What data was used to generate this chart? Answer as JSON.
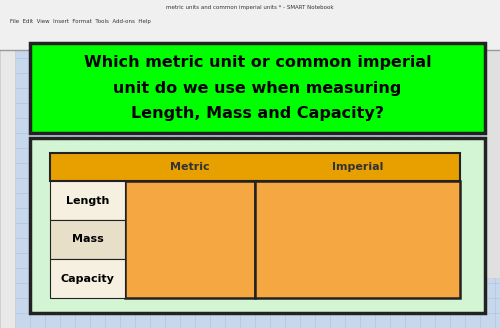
{
  "title_line1": "Which metric unit or common imperial",
  "title_line2": "unit do we use when measuring",
  "title_line3": "Length, Mass and Capacity?",
  "title_bg": "#00FF00",
  "title_text_color": "#000000",
  "outer_bg": "#d4f5d4",
  "outer_border": "#222222",
  "header_bg": "#E8A000",
  "header_text_color": "#333333",
  "row_label_bg_length": "#f5f0e0",
  "row_label_bg_mass": "#e8dfc8",
  "row_label_bg_capacity": "#f5f0e0",
  "row_label_text": "#000000",
  "cell_bg": "#F5A842",
  "cell_border": "#222222",
  "col_headers": [
    "Metric",
    "Imperial"
  ],
  "row_labels": [
    "Length",
    "Mass",
    "Capacity"
  ],
  "toolbar_bg": "#f0f0f0",
  "fig_bg": "#c8d8ec",
  "grid_line_color": "#aec8e0"
}
